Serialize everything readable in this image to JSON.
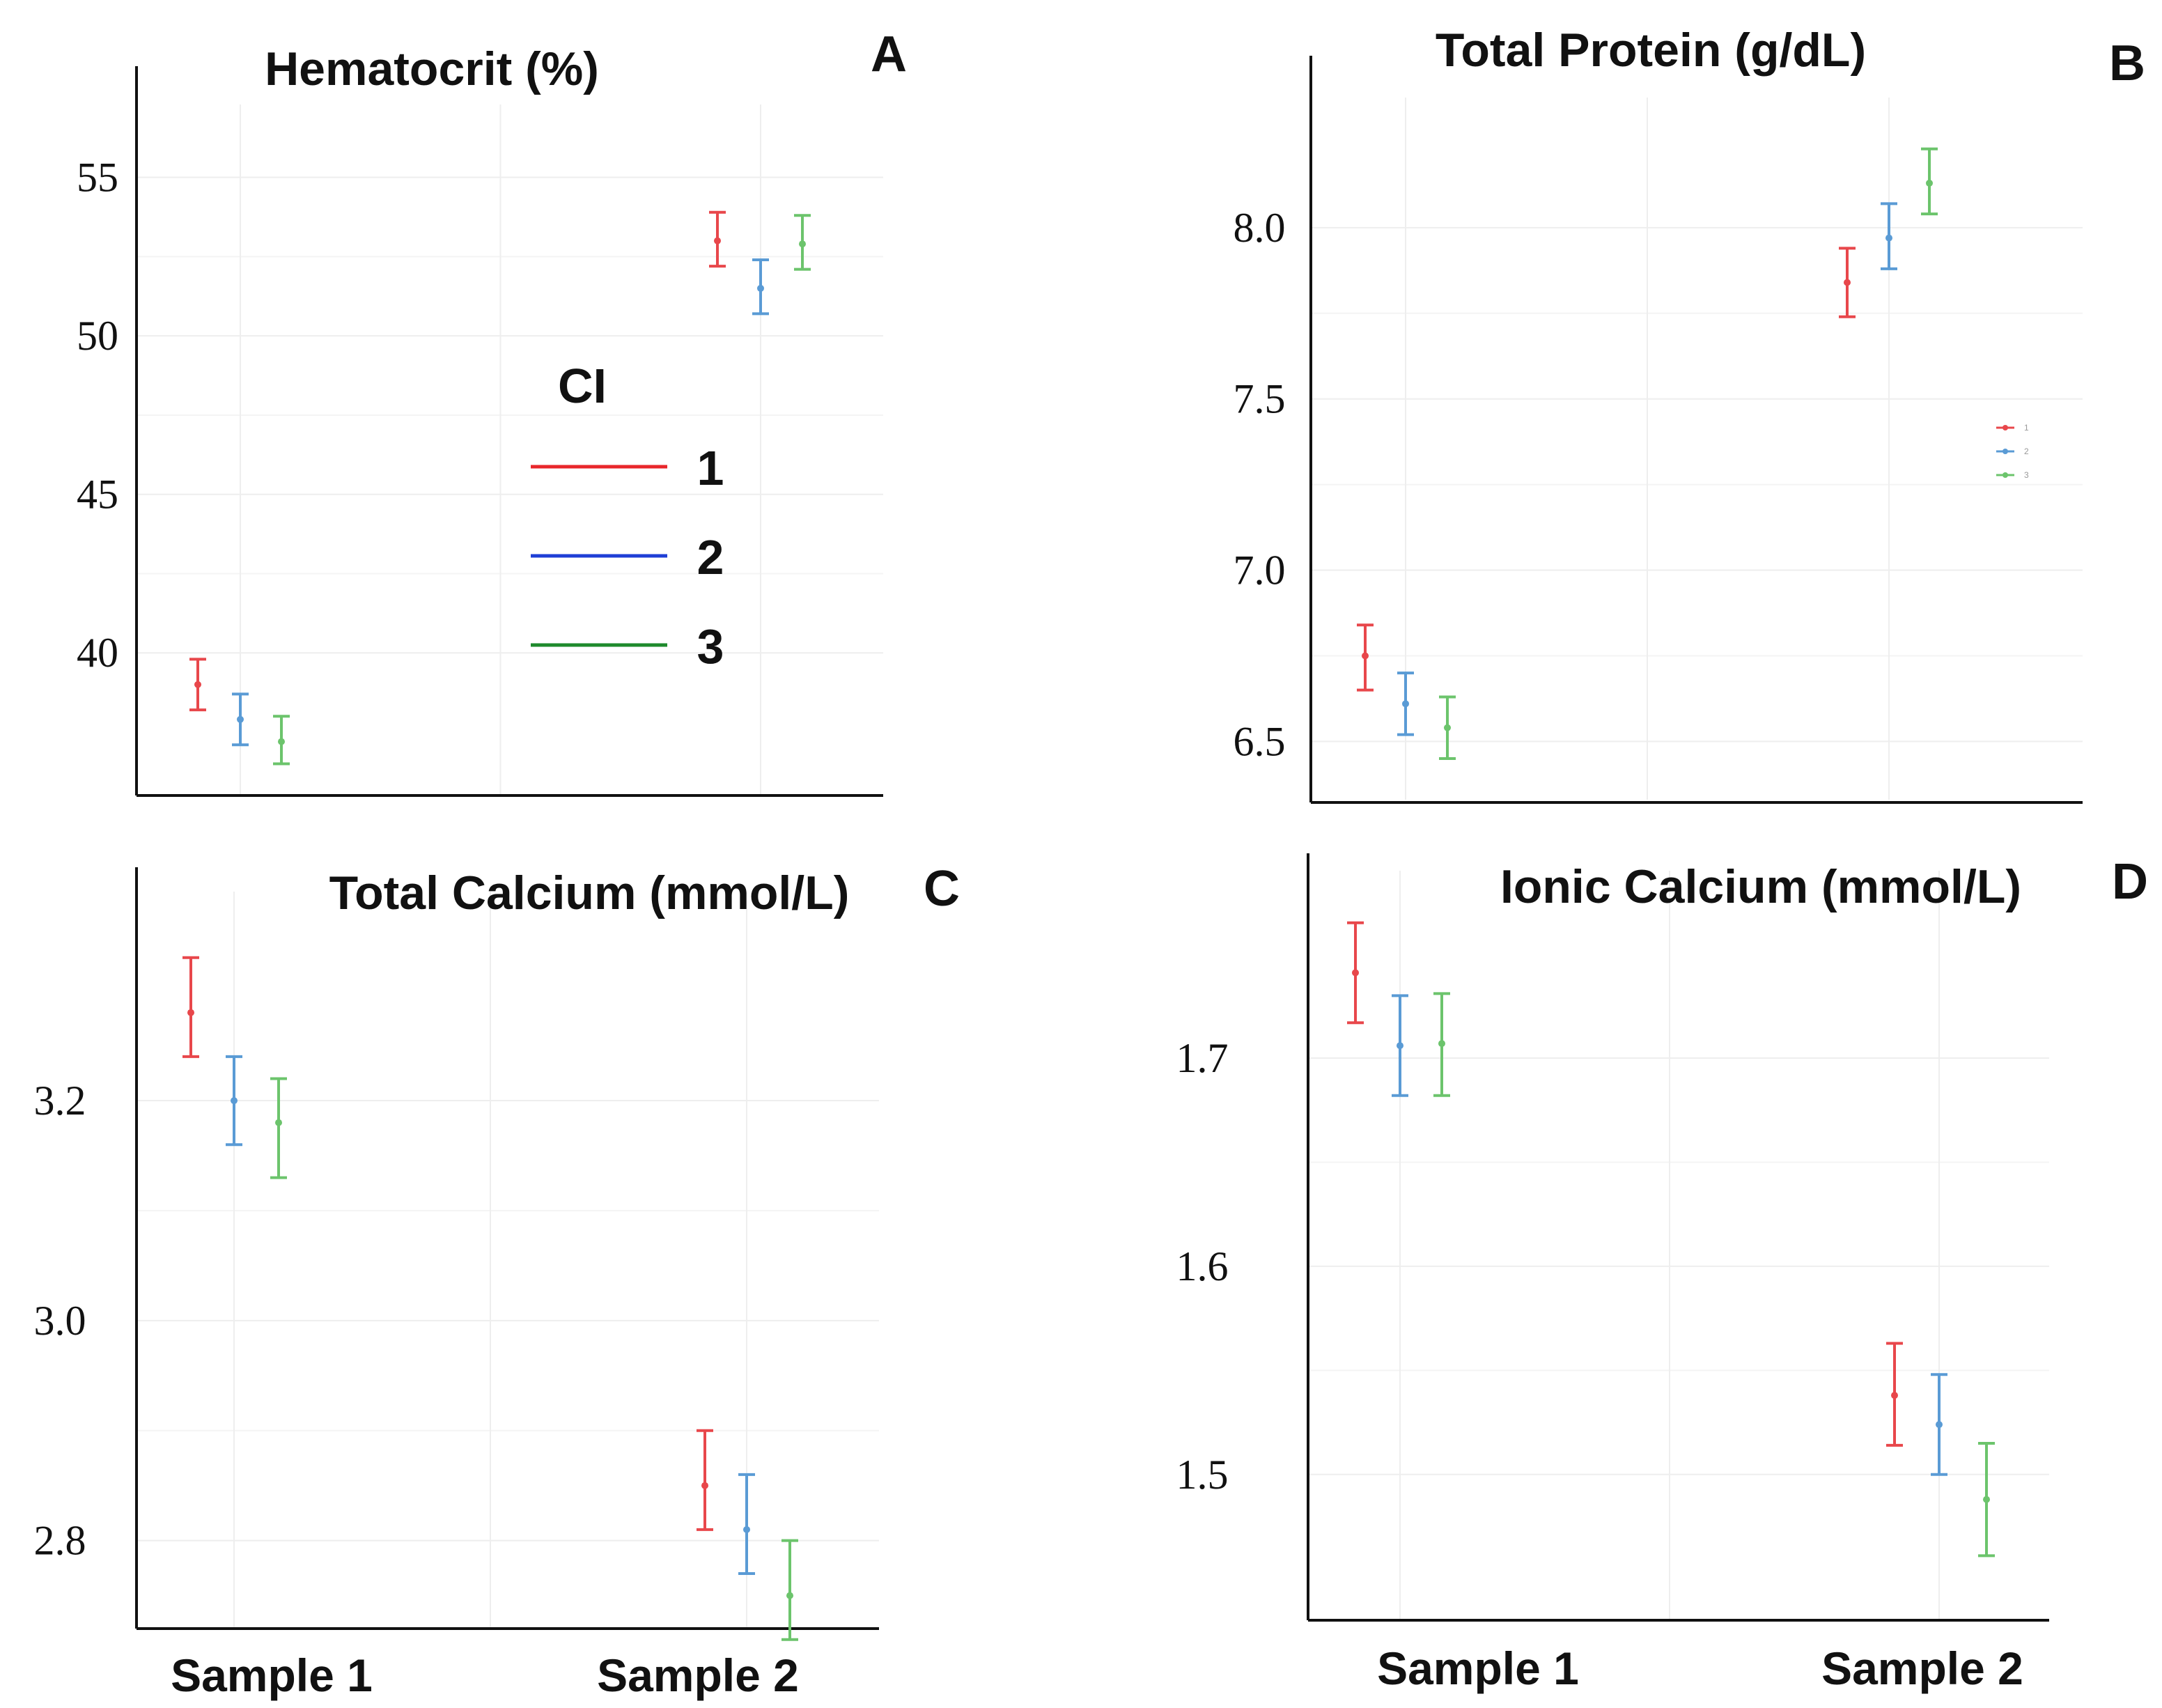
{
  "legend": {
    "title": "CI",
    "entries": [
      {
        "label": "1",
        "color": "#e8262b"
      },
      {
        "label": "2",
        "color": "#1f3fd6"
      },
      {
        "label": "3",
        "color": "#1e8a2c"
      }
    ]
  },
  "chart_data": [
    {
      "type": "errorbar",
      "panel_letter": "A",
      "title": "Hematocrit (%)",
      "categories": [
        "Sample 1",
        "Sample 2"
      ],
      "yticks": [
        40,
        45,
        50,
        55
      ],
      "ylim": [
        35.5,
        57.3
      ],
      "series": [
        {
          "name": "1",
          "color": "#e8474b",
          "means": [
            39.0,
            53.0
          ],
          "lower": [
            38.2,
            52.2
          ],
          "upper": [
            39.8,
            53.9
          ]
        },
        {
          "name": "2",
          "color": "#5a9bd5",
          "means": [
            37.9,
            51.5
          ],
          "lower": [
            37.1,
            50.7
          ],
          "upper": [
            38.7,
            52.4
          ]
        },
        {
          "name": "3",
          "color": "#6cc46c",
          "means": [
            37.2,
            52.9
          ],
          "lower": [
            36.5,
            52.1
          ],
          "upper": [
            38.0,
            53.8
          ]
        }
      ]
    },
    {
      "type": "errorbar",
      "panel_letter": "B",
      "title": "Total Protein (g/dL)",
      "categories": [
        "Sample 1",
        "Sample 2"
      ],
      "yticks": [
        6.5,
        7.0,
        7.5,
        8.0
      ],
      "ylim": [
        6.33,
        8.38
      ],
      "series": [
        {
          "name": "1",
          "color": "#e8474b",
          "means": [
            6.75,
            7.84
          ],
          "lower": [
            6.65,
            7.74
          ],
          "upper": [
            6.84,
            7.94
          ]
        },
        {
          "name": "2",
          "color": "#5a9bd5",
          "means": [
            6.61,
            7.97
          ],
          "lower": [
            6.52,
            7.88
          ],
          "upper": [
            6.7,
            8.07
          ]
        },
        {
          "name": "3",
          "color": "#6cc46c",
          "means": [
            6.54,
            8.13
          ],
          "lower": [
            6.45,
            8.04
          ],
          "upper": [
            6.63,
            8.23
          ]
        }
      ]
    },
    {
      "type": "errorbar",
      "panel_letter": "C",
      "title": "Total Calcium (mmol/L)",
      "categories": [
        "Sample 1",
        "Sample 2"
      ],
      "yticks": [
        2.8,
        3.0,
        3.2
      ],
      "ylim": [
        2.72,
        3.39
      ],
      "series": [
        {
          "name": "1",
          "color": "#e8474b",
          "means": [
            3.28,
            2.85
          ],
          "lower": [
            3.24,
            2.81
          ],
          "upper": [
            3.33,
            2.9
          ]
        },
        {
          "name": "2",
          "color": "#5a9bd5",
          "means": [
            3.2,
            2.81
          ],
          "lower": [
            3.16,
            2.77
          ],
          "upper": [
            3.24,
            2.86
          ]
        },
        {
          "name": "3",
          "color": "#6cc46c",
          "means": [
            3.18,
            2.75
          ],
          "lower": [
            3.13,
            2.71
          ],
          "upper": [
            3.22,
            2.8
          ]
        }
      ]
    },
    {
      "type": "errorbar",
      "panel_letter": "D",
      "title": "Ionic Calcium (mmol/L)",
      "categories": [
        "Sample 1",
        "Sample 2"
      ],
      "yticks": [
        1.5,
        1.6,
        1.7
      ],
      "ylim": [
        1.43,
        1.79
      ],
      "series": [
        {
          "name": "1",
          "color": "#e8474b",
          "means": [
            1.741,
            1.538
          ],
          "lower": [
            1.717,
            1.514
          ],
          "upper": [
            1.765,
            1.563
          ]
        },
        {
          "name": "2",
          "color": "#5a9bd5",
          "means": [
            1.706,
            1.524
          ],
          "lower": [
            1.682,
            1.5
          ],
          "upper": [
            1.73,
            1.548
          ]
        },
        {
          "name": "3",
          "color": "#6cc46c",
          "means": [
            1.707,
            1.488
          ],
          "lower": [
            1.682,
            1.461
          ],
          "upper": [
            1.731,
            1.515
          ]
        }
      ]
    }
  ]
}
